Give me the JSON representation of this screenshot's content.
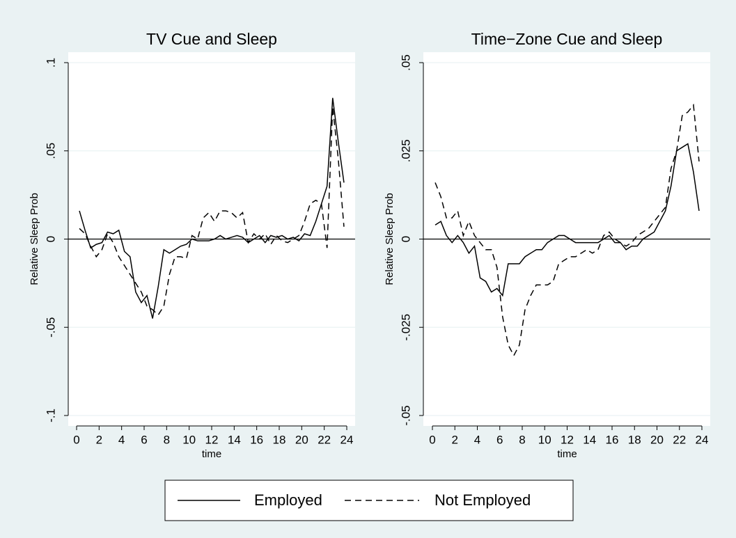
{
  "chart_data": [
    {
      "type": "line",
      "title": "TV Cue and Sleep",
      "xlabel": "time",
      "ylabel": "Relative Sleep Prob",
      "x": [
        0.25,
        0.75,
        1.25,
        1.75,
        2.25,
        2.75,
        3.25,
        3.75,
        4.25,
        4.75,
        5.25,
        5.75,
        6.25,
        6.75,
        7.25,
        7.75,
        8.25,
        8.75,
        9.25,
        9.75,
        10.25,
        10.75,
        11.25,
        11.75,
        12.25,
        12.75,
        13.25,
        13.75,
        14.25,
        14.75,
        15.25,
        15.75,
        16.25,
        16.75,
        17.25,
        17.75,
        18.25,
        18.75,
        19.25,
        19.75,
        20.25,
        20.75,
        21.25,
        21.75,
        22.25,
        22.75,
        23.25,
        23.75
      ],
      "series": [
        {
          "name": "Employed",
          "color": "#000000",
          "dash": "solid",
          "values": [
            0.016,
            0.005,
            -0.005,
            -0.003,
            -0.002,
            0.004,
            0.003,
            0.005,
            -0.007,
            -0.01,
            -0.03,
            -0.036,
            -0.032,
            -0.045,
            -0.027,
            -0.006,
            -0.008,
            -0.006,
            -0.004,
            -0.003,
            0,
            -0.001,
            -0.001,
            -0.001,
            0,
            0.002,
            0,
            0.001,
            0.002,
            0.001,
            -0.002,
            0,
            0.002,
            -0.002,
            0.002,
            0.001,
            0.002,
            0,
            0.001,
            -0.001,
            0.003,
            0.002,
            0.01,
            0.02,
            0.03,
            0.08,
            0.055,
            0.032
          ]
        },
        {
          "name": "Not Employed",
          "color": "#000000",
          "dash": "dashed",
          "values": [
            0.006,
            0.003,
            -0.004,
            -0.01,
            -0.006,
            0.003,
            -0.002,
            -0.01,
            -0.015,
            -0.02,
            -0.025,
            -0.03,
            -0.038,
            -0.04,
            -0.043,
            -0.038,
            -0.02,
            -0.01,
            -0.01,
            -0.011,
            0.002,
            0,
            0.012,
            0.015,
            0.01,
            0.016,
            0.016,
            0.015,
            0.012,
            0.015,
            -0.002,
            0.003,
            0,
            0.003,
            -0.003,
            0.002,
            -0.001,
            -0.002,
            0,
            0.002,
            0.01,
            0.02,
            0.022,
            0.02,
            -0.005,
            0.075,
            0.045,
            0.007
          ]
        }
      ],
      "xlim": [
        0,
        24
      ],
      "xticks": [
        0,
        2,
        4,
        6,
        8,
        10,
        12,
        14,
        16,
        18,
        20,
        22,
        24
      ],
      "ylim": [
        -0.1,
        0.1
      ],
      "yticks": [
        {
          "value": -0.1,
          "label": "-.1"
        },
        {
          "value": -0.05,
          "label": "-.05"
        },
        0,
        {
          "value": 0.05,
          "label": ".05"
        },
        {
          "value": 0.1,
          "label": ".1"
        }
      ],
      "hline": 0,
      "grid": true
    },
    {
      "type": "line",
      "title": "Time−Zone Cue and Sleep",
      "xlabel": "time",
      "ylabel": "Relative Sleep Prob",
      "x": [
        0.25,
        0.75,
        1.25,
        1.75,
        2.25,
        2.75,
        3.25,
        3.75,
        4.25,
        4.75,
        5.25,
        5.75,
        6.25,
        6.75,
        7.25,
        7.75,
        8.25,
        8.75,
        9.25,
        9.75,
        10.25,
        10.75,
        11.25,
        11.75,
        12.25,
        12.75,
        13.25,
        13.75,
        14.25,
        14.75,
        15.25,
        15.75,
        16.25,
        16.75,
        17.25,
        17.75,
        18.25,
        18.75,
        19.25,
        19.75,
        20.25,
        20.75,
        21.25,
        21.75,
        22.25,
        22.75,
        23.25,
        23.75
      ],
      "series": [
        {
          "name": "Employed",
          "color": "#000000",
          "dash": "solid",
          "values": [
            0.004,
            0.005,
            0.001,
            -0.001,
            0.001,
            -0.001,
            -0.004,
            -0.002,
            -0.011,
            -0.012,
            -0.015,
            -0.014,
            -0.016,
            -0.007,
            -0.007,
            -0.007,
            -0.005,
            -0.004,
            -0.003,
            -0.003,
            -0.001,
            0,
            0.001,
            0.001,
            0,
            -0.001,
            -0.001,
            -0.001,
            -0.001,
            -0.001,
            0,
            0.001,
            -0.001,
            -0.001,
            -0.003,
            -0.002,
            -0.002,
            0,
            0.001,
            0.002,
            0.005,
            0.008,
            0.015,
            0.025,
            0.026,
            0.027,
            0.019,
            0.008
          ]
        },
        {
          "name": "Not Employed",
          "color": "#000000",
          "dash": "dashed",
          "values": [
            0.016,
            0.012,
            0.006,
            0.006,
            0.008,
            0.001,
            0.005,
            0.001,
            -0.001,
            -0.003,
            -0.003,
            -0.008,
            -0.022,
            -0.03,
            -0.033,
            -0.03,
            -0.02,
            -0.016,
            -0.013,
            -0.013,
            -0.013,
            -0.012,
            -0.007,
            -0.006,
            -0.005,
            -0.005,
            -0.004,
            -0.003,
            -0.004,
            -0.003,
            0.001,
            0.002,
            0,
            -0.001,
            -0.002,
            -0.001,
            0.001,
            0.002,
            0.003,
            0.005,
            0.007,
            0.009,
            0.02,
            0.025,
            0.035,
            0.036,
            0.038,
            0.022
          ]
        }
      ],
      "xlim": [
        0,
        24
      ],
      "xticks": [
        0,
        2,
        4,
        6,
        8,
        10,
        12,
        14,
        16,
        18,
        20,
        22,
        24
      ],
      "ylim": [
        -0.05,
        0.05
      ],
      "yticks": [
        {
          "value": -0.05,
          "label": "-.05"
        },
        {
          "value": -0.025,
          "label": "-.025"
        },
        0,
        {
          "value": 0.025,
          "label": ".025"
        },
        {
          "value": 0.05,
          "label": ".05"
        }
      ],
      "hline": 0,
      "grid": true
    }
  ]
}
